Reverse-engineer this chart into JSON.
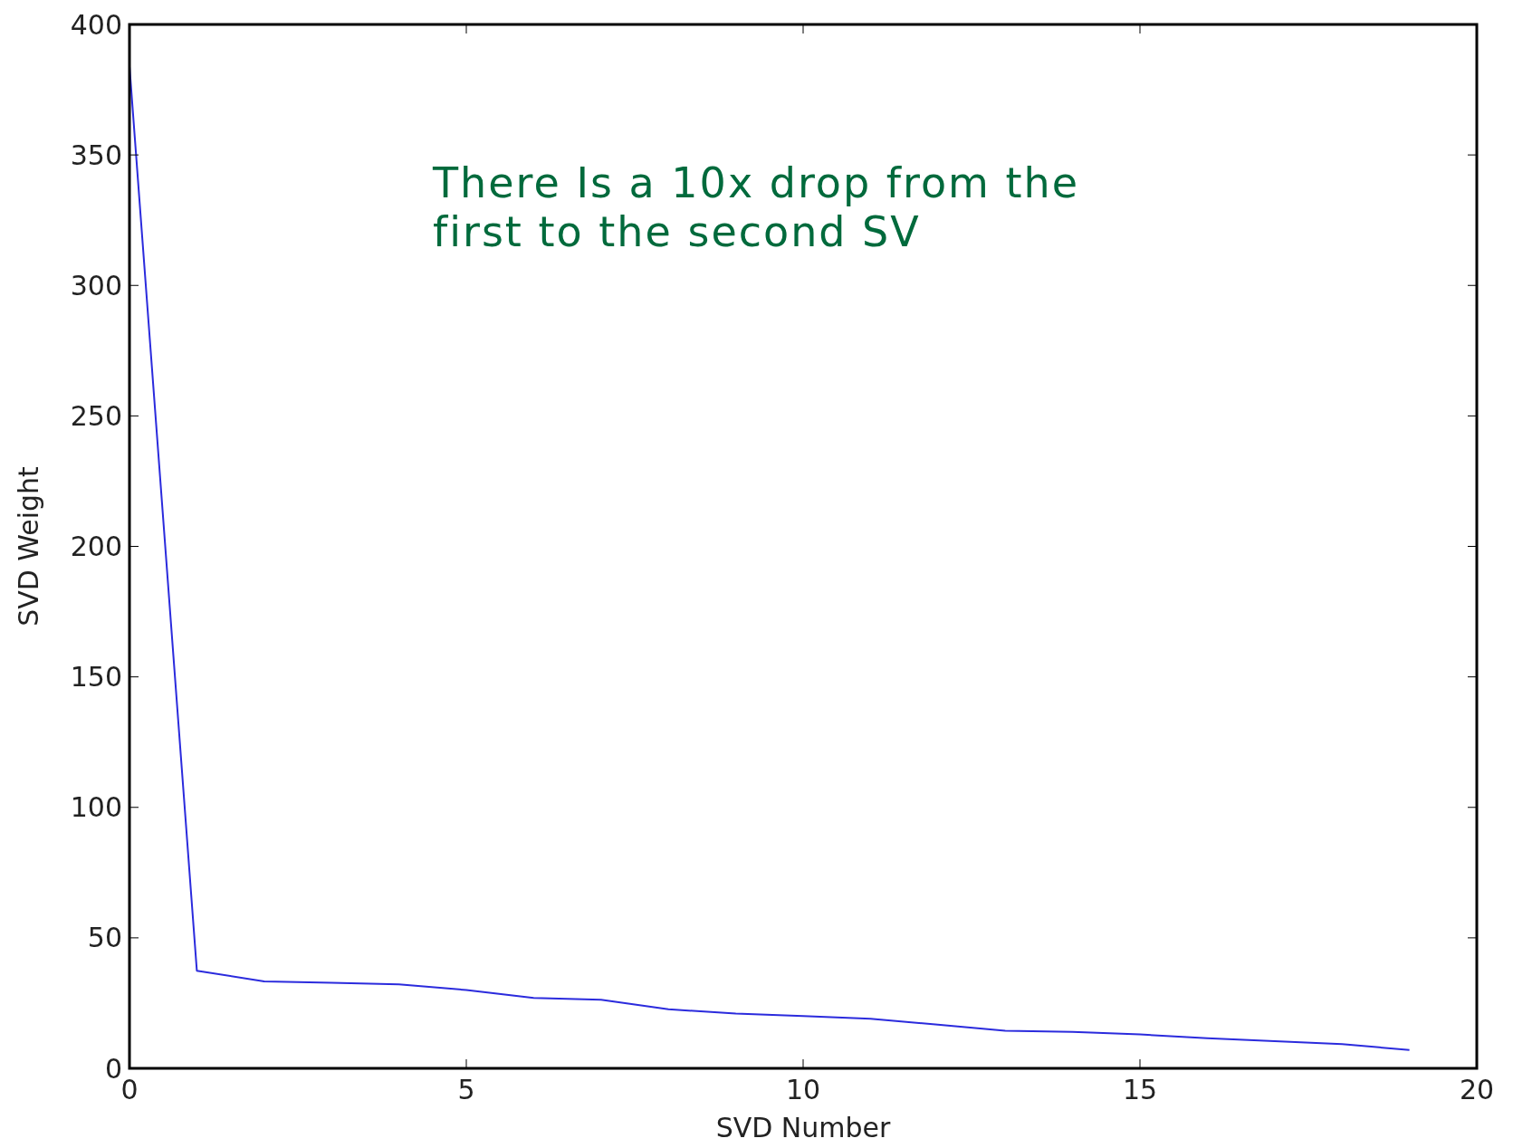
{
  "chart_data": {
    "type": "line",
    "xlabel": "SVD Number",
    "ylabel": "SVD Weight",
    "annotations": [
      "There Is a 10x drop from the\nfirst to the second SV"
    ],
    "x": [
      0,
      1,
      2,
      3,
      4,
      5,
      6,
      7,
      8,
      9,
      10,
      11,
      12,
      13,
      14,
      15,
      16,
      17,
      18,
      19
    ],
    "series": [
      {
        "color": "#2b2bdd",
        "values": [
          384,
          37.4,
          33.3,
          32.8,
          32.2,
          30,
          27,
          26.3,
          22.6,
          21,
          20,
          19,
          16.7,
          14.4,
          14,
          13,
          11.5,
          10.4,
          9.3,
          7
        ]
      }
    ],
    "xlim": [
      0,
      20
    ],
    "ylim": [
      0,
      400
    ],
    "xticks": [
      0,
      5,
      10,
      15,
      20
    ],
    "yticks": [
      0,
      50,
      100,
      150,
      200,
      250,
      300,
      350,
      400
    ],
    "grid": false,
    "marker": "none",
    "line_style": "solid"
  }
}
